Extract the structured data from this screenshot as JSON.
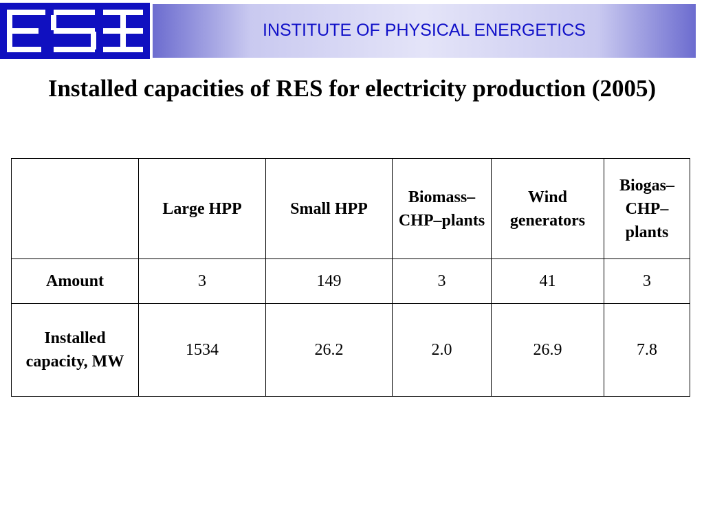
{
  "header": {
    "title": "INSTITUTE OF PHYSICAL ENERGETICS"
  },
  "title": "Installed capacities of RES for electricity production (2005)",
  "table": {
    "columns": [
      "Large HPP",
      "Small HPP",
      "Biomass–CHP–plants",
      "Wind generators",
      "Biogas–CHP–plants"
    ],
    "rows": [
      {
        "label": "Amount",
        "values": [
          3,
          149,
          3,
          41,
          3
        ]
      },
      {
        "label": "Installed capacity, MW",
        "values": [
          "1534",
          "26.2",
          "2.0",
          "26.9",
          "7.8"
        ]
      }
    ]
  }
}
